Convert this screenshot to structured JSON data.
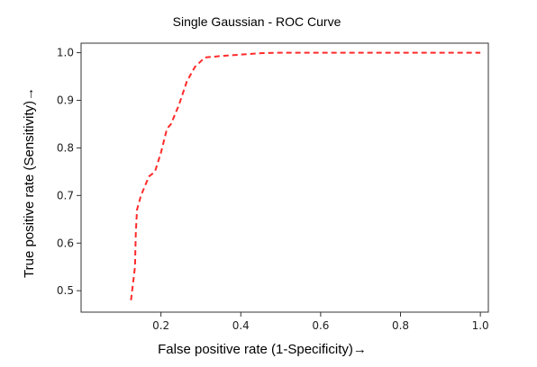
{
  "chart_data": {
    "type": "line",
    "title": "Single Gaussian - ROC Curve",
    "xlabel": "False positive rate (1-Specificity)→",
    "ylabel": "True positive rate (Sensitivity)→",
    "xlim": [
      0.0,
      1.02
    ],
    "ylim": [
      0.455,
      1.02
    ],
    "xticks": [
      0.2,
      0.4,
      0.6,
      0.8,
      1.0
    ],
    "xtick_labels": [
      "0.2",
      "0.4",
      "0.6",
      "0.8",
      "1.0"
    ],
    "yticks": [
      0.5,
      0.6,
      0.7,
      0.8,
      0.9,
      1.0
    ],
    "ytick_labels": [
      "0.5",
      "0.6",
      "0.7",
      "0.8",
      "0.9",
      "1.0"
    ],
    "grid": false,
    "series": [
      {
        "line_style": "dashed",
        "color": "#ff2a2a",
        "x": [
          0.125,
          0.135,
          0.137,
          0.14,
          0.15,
          0.17,
          0.185,
          0.2,
          0.215,
          0.225,
          0.245,
          0.265,
          0.285,
          0.31,
          0.35,
          0.4,
          0.45,
          0.5,
          0.6,
          0.7,
          0.8,
          0.9,
          1.0
        ],
        "y": [
          0.48,
          0.55,
          0.62,
          0.67,
          0.7,
          0.74,
          0.75,
          0.79,
          0.84,
          0.85,
          0.89,
          0.94,
          0.97,
          0.99,
          0.993,
          0.996,
          0.999,
          1.0,
          1.0,
          1.0,
          1.0,
          1.0,
          1.0
        ]
      }
    ]
  }
}
